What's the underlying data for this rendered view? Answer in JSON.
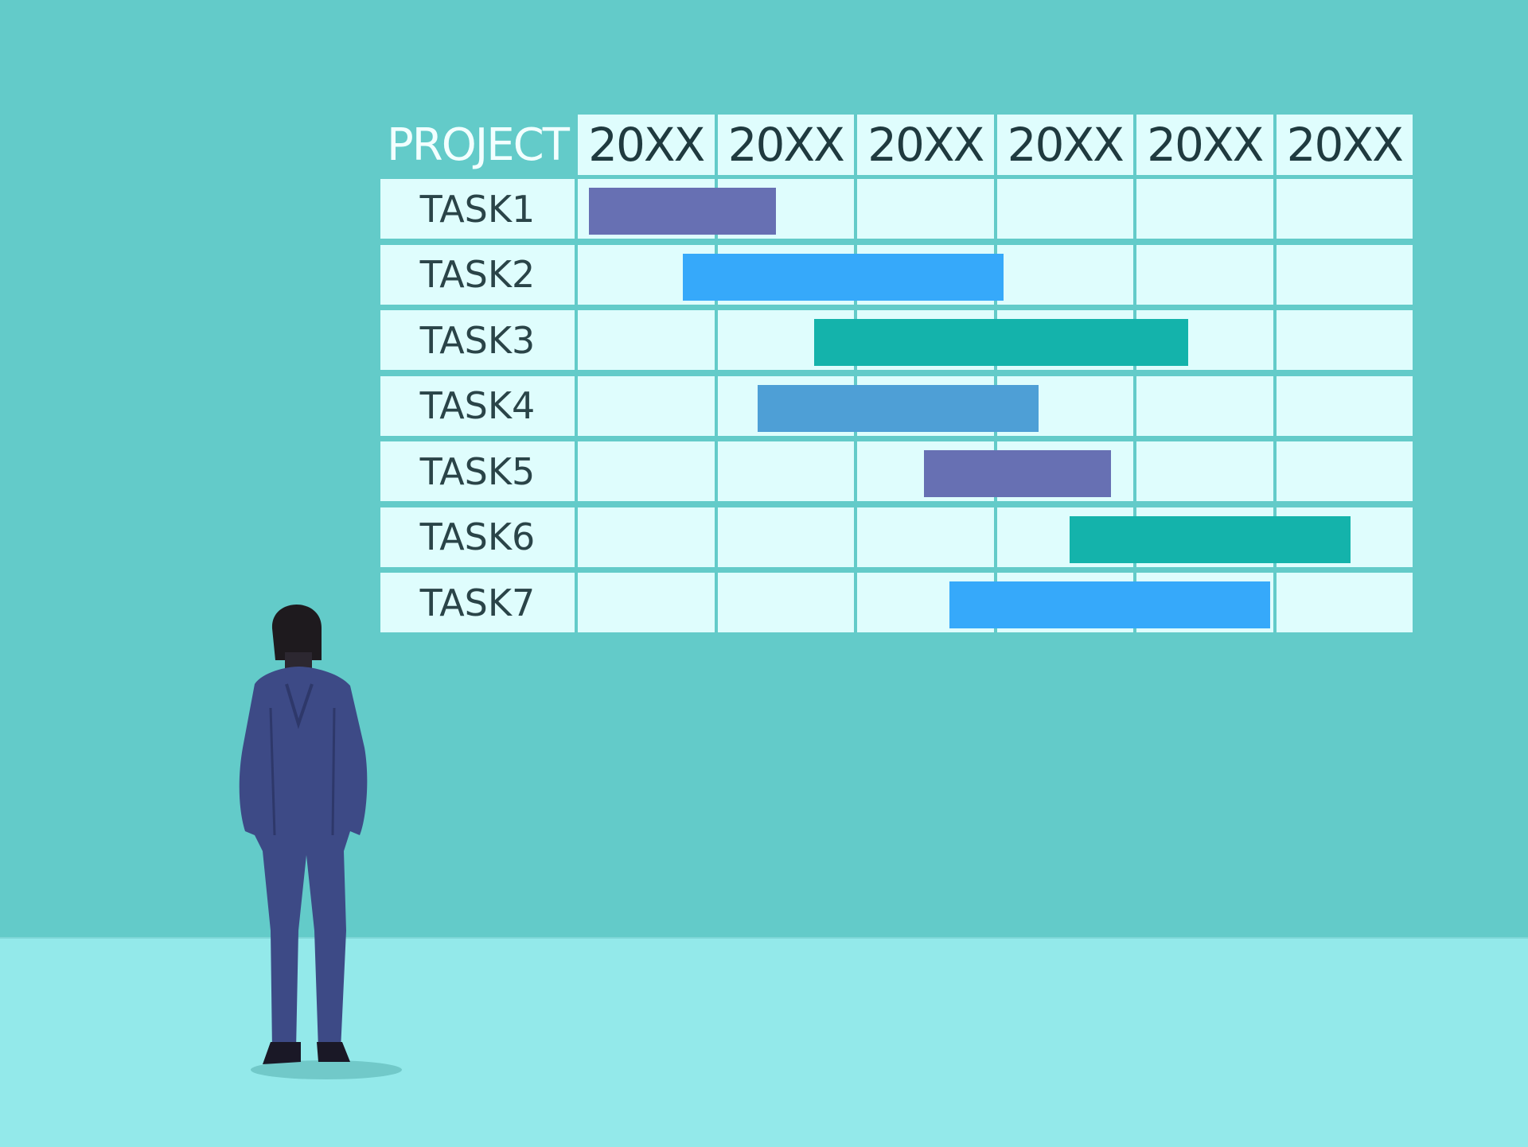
{
  "chart_data": {
    "type": "gantt",
    "corner_label": "PROJECT",
    "categories": [
      "20XX",
      "20XX",
      "20XX",
      "20XX",
      "20XX",
      "20XX"
    ],
    "xlim": [
      0,
      6
    ],
    "grid": true,
    "tasks": [
      {
        "name": "TASK1",
        "start": 0.08,
        "end": 1.42,
        "color": "#6770b3"
      },
      {
        "name": "TASK2",
        "start": 0.75,
        "end": 3.05,
        "color": "#36a9fa"
      },
      {
        "name": "TASK3",
        "start": 1.69,
        "end": 4.37,
        "color": "#14b3ab"
      },
      {
        "name": "TASK4",
        "start": 1.29,
        "end": 3.3,
        "color": "#4e9fd6"
      },
      {
        "name": "TASK5",
        "start": 2.48,
        "end": 3.82,
        "color": "#6770b3"
      },
      {
        "name": "TASK6",
        "start": 3.52,
        "end": 5.53,
        "color": "#14b3ab"
      },
      {
        "name": "TASK7",
        "start": 2.66,
        "end": 4.96,
        "color": "#36a9fa"
      }
    ]
  },
  "colors": {
    "wall": "#63cbc9",
    "floor": "#93e9ea",
    "cell": "#dffdfd",
    "figure_suit": "#3d4a86"
  }
}
